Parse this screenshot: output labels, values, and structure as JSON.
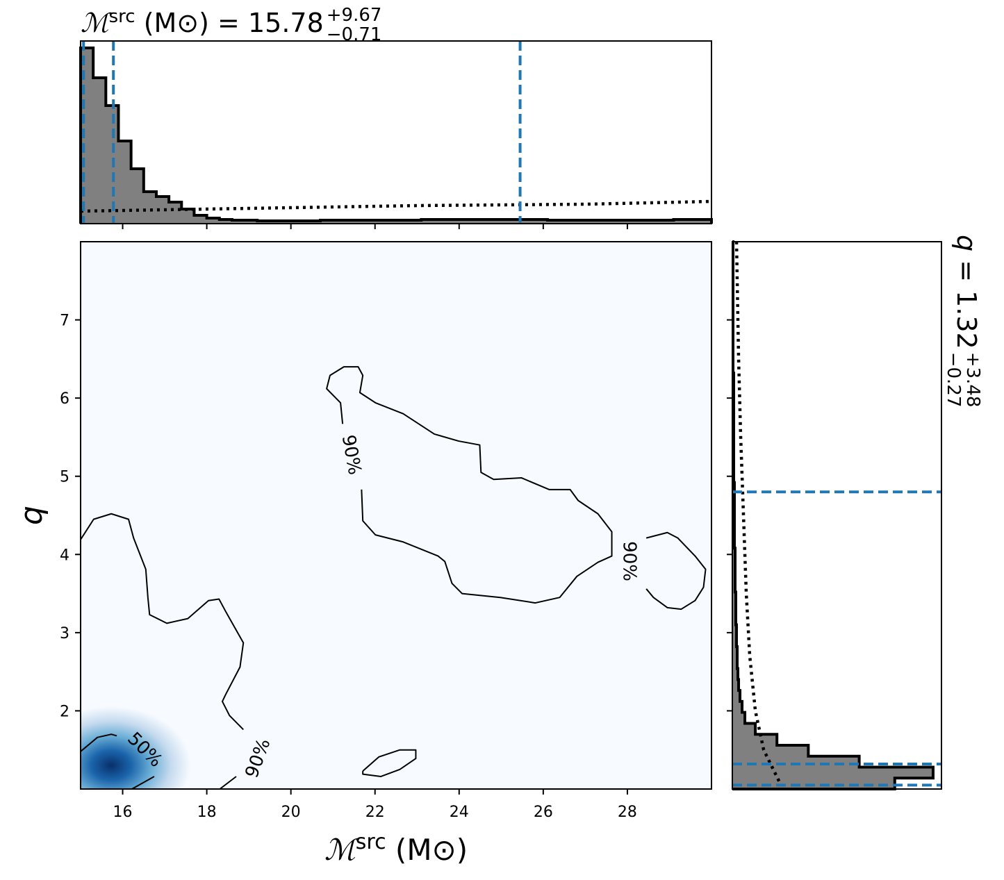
{
  "chart_data": {
    "type": "corner",
    "x_title": {
      "symbol": "ℳ",
      "superscript": "src",
      "text": " (M⊙) = 15.78",
      "plus": "+9.67",
      "minus": "−0.71"
    },
    "y_title": {
      "symbol": "q",
      "text": " = 1.32",
      "plus": "+3.48",
      "minus": "−0.27"
    },
    "xlabel": {
      "symbol": "ℳ",
      "superscript": "src",
      "text": " (M⊙)"
    },
    "ylabel": "q",
    "xlim": [
      15,
      30
    ],
    "ylim": [
      1,
      8
    ],
    "xticks": [
      16,
      18,
      20,
      22,
      24,
      26,
      28
    ],
    "yticks": [
      2,
      3,
      4,
      5,
      6,
      7
    ],
    "x_quantiles": [
      15.07,
      15.78,
      25.45
    ],
    "y_quantiles": [
      1.05,
      1.32,
      4.8
    ],
    "quantile_color": "#1f77b4",
    "x_hist": {
      "bins": [
        15,
        15.3,
        15.6,
        15.9,
        16.2,
        16.5,
        16.8,
        17.1,
        17.4,
        17.7,
        18,
        18.3,
        18.6,
        18.9,
        19.2,
        19.5,
        19.8,
        20.1,
        20.4,
        20.7,
        21,
        21.3,
        21.6,
        21.9,
        22.2,
        22.5,
        22.8,
        23.1,
        23.4,
        23.7,
        24,
        24.3,
        24.6,
        24.9,
        25.2,
        25.5,
        25.8,
        26.1,
        26.4,
        26.7,
        27,
        27.3,
        27.6,
        27.9,
        28.2,
        28.5,
        28.8,
        29.1,
        29.4,
        29.7,
        30
      ],
      "counts": [
        253,
        210,
        170,
        119,
        79,
        46,
        39,
        31,
        21,
        12,
        8,
        6,
        5,
        5,
        4,
        4,
        4,
        4,
        4,
        5,
        5,
        5,
        5,
        5,
        5,
        5,
        5,
        6,
        6,
        6,
        6,
        6,
        6,
        6,
        6,
        6,
        6,
        5,
        5,
        5,
        5,
        5,
        5,
        5,
        5,
        5,
        5,
        6,
        6,
        6
      ],
      "ylim": [
        0,
        263
      ],
      "color": "#808080",
      "prior": {
        "x": [
          15,
          17,
          19,
          21,
          23,
          25,
          27,
          30
        ],
        "y": [
          18,
          20,
          22,
          24,
          26,
          27,
          28,
          32
        ]
      }
    },
    "y_hist": {
      "bins": [
        1,
        1.14,
        1.28,
        1.42,
        1.56,
        1.7,
        1.84,
        1.98,
        2.12,
        2.26,
        2.4,
        2.54,
        2.68,
        2.82,
        2.96,
        3.1,
        3.24,
        3.38,
        3.52,
        3.66,
        3.8,
        3.94,
        4.08,
        4.22,
        4.36,
        4.5,
        4.64,
        4.78,
        4.92,
        5.06,
        5.2,
        5.34,
        5.48,
        5.62,
        5.76,
        5.9,
        6.04,
        6.18,
        6.32,
        6.46,
        6.6,
        6.74,
        6.88,
        7.02,
        7.16,
        7.3,
        7.44,
        7.58,
        7.72,
        7.86,
        8
      ],
      "counts": [
        233,
        288,
        182,
        109,
        64,
        33,
        18,
        14,
        11,
        9,
        8,
        7,
        7,
        6,
        6,
        5,
        5,
        5,
        4,
        4,
        4,
        4,
        3,
        3,
        3,
        3,
        3,
        3,
        2,
        2,
        2,
        2,
        2,
        2,
        2,
        2,
        2,
        2,
        1,
        1,
        1,
        1,
        1,
        1,
        1,
        1,
        1,
        1,
        1,
        1
      ],
      "xlim": [
        0,
        300
      ],
      "color": "#808080",
      "prior": {
        "y": [
          1.1,
          1.5,
          2,
          2.7,
          3.5,
          4.5,
          5.5,
          6.5,
          8
        ],
        "x": [
          67,
          45,
          33,
          25,
          20,
          16,
          12,
          9,
          6
        ]
      }
    },
    "contours": [
      {
        "label": "90%",
        "x": [
          15,
          15.31,
          15.73,
          16.14,
          16.26,
          16.55,
          16.6,
          16.64,
          17.05,
          17.55,
          18.04,
          18.29,
          18.45,
          18.87,
          18.79,
          18.45,
          18.37,
          18.54,
          18.87,
          null,
          18.7,
          18.31
        ],
        "y": [
          4.19,
          4.45,
          4.52,
          4.45,
          4.21,
          3.81,
          3.45,
          3.23,
          3.12,
          3.18,
          3.41,
          3.43,
          3.27,
          2.87,
          2.56,
          2.21,
          2.12,
          1.94,
          1.76,
          null,
          1.16,
          1.0
        ]
      },
      {
        "label": "90%",
        "x": [
          21.23,
          21.18,
          20.85,
          20.93,
          21.26,
          21.6,
          21.71,
          21.64,
          22.01,
          22.67,
          23.41,
          23.99,
          24.49,
          24.52,
          24.82,
          25.48,
          26.14,
          26.64,
          26.83,
          27.3,
          27.63,
          27.63,
          27.3,
          26.8,
          26.39,
          25.81,
          24.98,
          24.07,
          23.83,
          23.66,
          23.5,
          22.67,
          22.01,
          21.71,
          21.68
        ],
        "y": [
          5.67,
          5.94,
          6.12,
          6.29,
          6.4,
          6.4,
          6.29,
          6.07,
          5.94,
          5.8,
          5.54,
          5.45,
          5.4,
          5.05,
          4.96,
          4.98,
          4.83,
          4.83,
          4.69,
          4.52,
          4.29,
          3.98,
          3.9,
          3.72,
          3.45,
          3.38,
          3.45,
          3.5,
          3.63,
          3.91,
          3.98,
          4.16,
          4.25,
          4.43,
          4.83
        ]
      },
      {
        "label": "90%",
        "x": [
          28.45,
          28.95,
          29.2,
          29.61,
          29.86,
          29.81,
          29.61,
          29.28,
          28.95,
          28.62,
          28.45
        ],
        "y": [
          4.21,
          4.28,
          4.21,
          3.98,
          3.81,
          3.58,
          3.41,
          3.3,
          3.32,
          3.45,
          3.56
        ]
      },
      {
        "x": [
          21.71,
          22.09,
          22.59,
          22.97,
          22.97,
          22.59,
          22.14,
          21.71,
          21.71
        ],
        "y": [
          1.23,
          1.41,
          1.5,
          1.5,
          1.39,
          1.25,
          1.16,
          1.19,
          1.23
        ]
      },
      {
        "label": "50%",
        "x": [
          15,
          15.4,
          15.73,
          15.86,
          null,
          16.75,
          16.22
        ],
        "y": [
          1.48,
          1.66,
          1.7,
          1.68,
          null,
          1.16,
          1.0
        ]
      }
    ]
  }
}
